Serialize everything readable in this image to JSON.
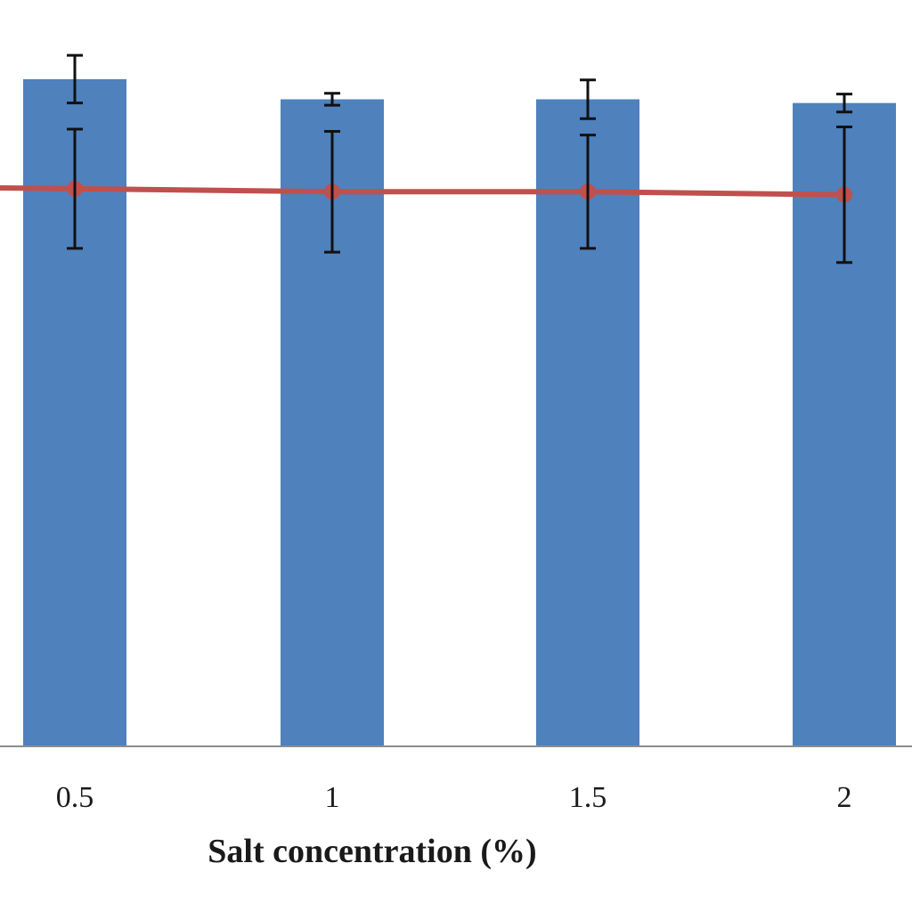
{
  "chart_data": {
    "type": "bar",
    "xlabel": "Salt concentration (%)",
    "categories": [
      "0.5",
      "1",
      "1.5",
      "2"
    ],
    "ylim": [
      0,
      100
    ],
    "grid": false,
    "series": [
      {
        "kind": "bar",
        "color": "#4f81bd",
        "values": [
          89.5,
          86.8,
          86.8,
          86.3
        ],
        "errors": [
          3.2,
          0.8,
          2.6,
          1.2
        ]
      },
      {
        "kind": "line",
        "color": "#c0504d",
        "values": [
          74.8,
          74.4,
          74.4,
          74.0
        ],
        "errors": [
          8.0,
          8.1,
          7.6,
          9.1
        ]
      }
    ]
  }
}
